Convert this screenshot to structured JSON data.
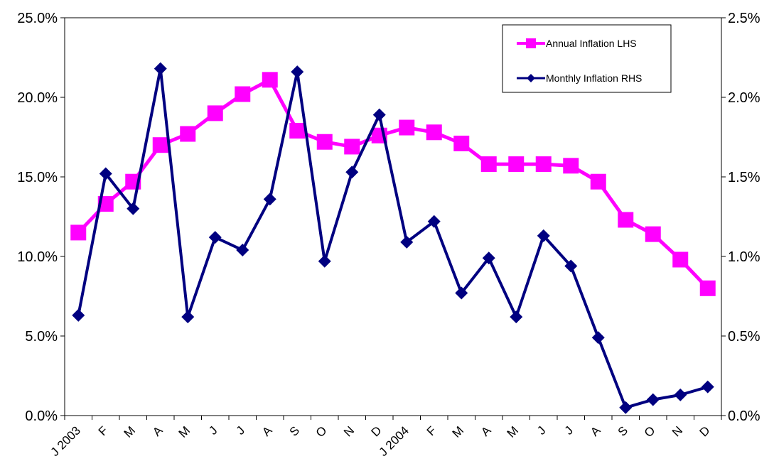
{
  "chart_data": {
    "type": "line",
    "title": "",
    "xlabel": "",
    "ylabel": "",
    "categories": [
      "J 2003",
      "F",
      "M",
      "A",
      "M",
      "J",
      "J",
      "A",
      "S",
      "O",
      "N",
      "D",
      "J 2004",
      "F",
      "M",
      "A",
      "M",
      "J",
      "J",
      "A",
      "S",
      "O",
      "N",
      "D"
    ],
    "y_left": {
      "lim": [
        0,
        0.25
      ],
      "ticks": [
        "0.0%",
        "5.0%",
        "10.0%",
        "15.0%",
        "20.0%",
        "25.0%"
      ],
      "tick_values": [
        0,
        0.05,
        0.1,
        0.15,
        0.2,
        0.25
      ]
    },
    "y_right": {
      "lim": [
        0,
        0.025
      ],
      "ticks": [
        "0.0%",
        "0.5%",
        "1.0%",
        "1.5%",
        "2.0%",
        "2.5%"
      ],
      "tick_values": [
        0,
        0.005,
        0.01,
        0.015,
        0.02,
        0.025
      ]
    },
    "series": [
      {
        "name": "Annual Inflation LHS",
        "axis": "left",
        "color": "#FF00FF",
        "marker": "square",
        "values": [
          0.115,
          0.133,
          0.147,
          0.17,
          0.177,
          0.19,
          0.202,
          0.211,
          0.179,
          0.172,
          0.169,
          0.176,
          0.181,
          0.178,
          0.171,
          0.158,
          0.158,
          0.158,
          0.157,
          0.147,
          0.123,
          0.114,
          0.098,
          0.08
        ]
      },
      {
        "name": "Monthly Inflation RHS",
        "axis": "right",
        "color": "#000080",
        "marker": "diamond",
        "values": [
          0.0063,
          0.0152,
          0.013,
          0.0218,
          0.0062,
          0.0112,
          0.0104,
          0.0136,
          0.0216,
          0.0097,
          0.0153,
          0.0189,
          0.0109,
          0.0122,
          0.0077,
          0.0099,
          0.0062,
          0.0113,
          0.0094,
          0.0049,
          0.0005,
          0.001,
          0.0013,
          0.0018
        ]
      }
    ],
    "legend_position": "top-right",
    "grid": false
  }
}
